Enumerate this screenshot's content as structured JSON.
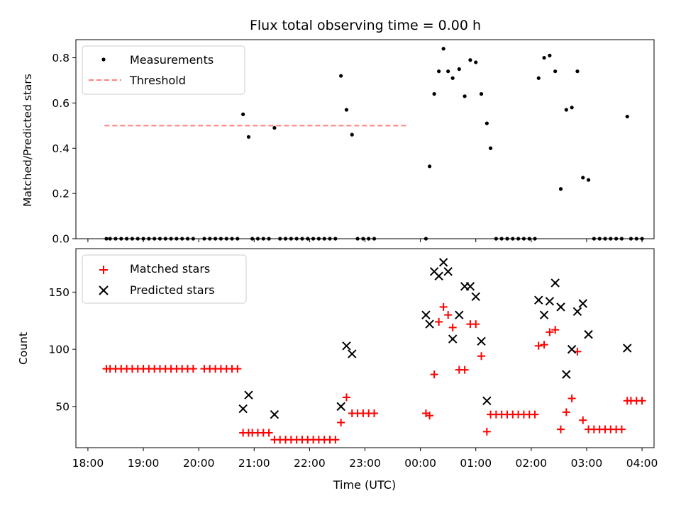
{
  "chart_data": [
    {
      "type": "scatter",
      "title": "Flux total observing time = 0.00 h",
      "xlabel": "",
      "ylabel": "Matched/Predicted stars",
      "xlim": [
        "18:00",
        "04:00"
      ],
      "ylim": [
        0,
        0.88
      ],
      "yticks": [
        "0.0",
        "0.2",
        "0.4",
        "0.6",
        "0.8"
      ],
      "legend": {
        "position": "top-left",
        "entries": [
          "Measurements",
          "Threshold"
        ]
      },
      "threshold": {
        "value": 0.5,
        "x_range": [
          "18:18",
          "23:45"
        ],
        "color": "#ff8080"
      },
      "series": [
        {
          "name": "Measurements",
          "color": "#000000",
          "points": [
            [
              "18:20",
              0
            ],
            [
              "18:24",
              0
            ],
            [
              "18:30",
              0
            ],
            [
              "18:36",
              0
            ],
            [
              "18:42",
              0
            ],
            [
              "18:48",
              0
            ],
            [
              "18:54",
              0
            ],
            [
              "19:00",
              0
            ],
            [
              "19:06",
              0
            ],
            [
              "19:12",
              0
            ],
            [
              "19:18",
              0
            ],
            [
              "19:24",
              0
            ],
            [
              "19:30",
              0
            ],
            [
              "19:36",
              0
            ],
            [
              "19:42",
              0
            ],
            [
              "19:48",
              0
            ],
            [
              "19:54",
              0
            ],
            [
              "20:06",
              0
            ],
            [
              "20:12",
              0
            ],
            [
              "20:18",
              0
            ],
            [
              "20:24",
              0
            ],
            [
              "20:30",
              0
            ],
            [
              "20:36",
              0
            ],
            [
              "20:42",
              0
            ],
            [
              "20:48",
              0.55
            ],
            [
              "20:54",
              0.45
            ],
            [
              "20:58",
              0
            ],
            [
              "21:04",
              0
            ],
            [
              "21:10",
              0
            ],
            [
              "21:16",
              0
            ],
            [
              "21:22",
              0.49
            ],
            [
              "21:28",
              0
            ],
            [
              "21:34",
              0
            ],
            [
              "21:40",
              0
            ],
            [
              "21:46",
              0
            ],
            [
              "21:52",
              0
            ],
            [
              "21:58",
              0
            ],
            [
              "22:04",
              0
            ],
            [
              "22:10",
              0
            ],
            [
              "22:16",
              0
            ],
            [
              "22:22",
              0
            ],
            [
              "22:28",
              0
            ],
            [
              "22:34",
              0.72
            ],
            [
              "22:40",
              0.57
            ],
            [
              "22:46",
              0.46
            ],
            [
              "22:52",
              0
            ],
            [
              "22:58",
              0
            ],
            [
              "23:04",
              0
            ],
            [
              "23:10",
              0
            ],
            [
              "00:06",
              0
            ],
            [
              "00:10",
              0.32
            ],
            [
              "00:15",
              0.64
            ],
            [
              "00:20",
              0.74
            ],
            [
              "00:25",
              0.84
            ],
            [
              "00:30",
              0.74
            ],
            [
              "00:35",
              0.71
            ],
            [
              "00:42",
              0.75
            ],
            [
              "00:48",
              0.63
            ],
            [
              "00:54",
              0.79
            ],
            [
              "01:00",
              0.78
            ],
            [
              "01:06",
              0.64
            ],
            [
              "01:12",
              0.51
            ],
            [
              "01:16",
              0.4
            ],
            [
              "01:22",
              0
            ],
            [
              "01:28",
              0
            ],
            [
              "01:34",
              0
            ],
            [
              "01:40",
              0
            ],
            [
              "01:46",
              0
            ],
            [
              "01:52",
              0
            ],
            [
              "01:58",
              0
            ],
            [
              "02:04",
              0
            ],
            [
              "02:08",
              0.71
            ],
            [
              "02:14",
              0.8
            ],
            [
              "02:20",
              0.81
            ],
            [
              "02:26",
              0.74
            ],
            [
              "02:32",
              0.22
            ],
            [
              "02:38",
              0.57
            ],
            [
              "02:44",
              0.58
            ],
            [
              "02:50",
              0.74
            ],
            [
              "02:56",
              0.27
            ],
            [
              "03:02",
              0.26
            ],
            [
              "03:08",
              0
            ],
            [
              "03:14",
              0
            ],
            [
              "03:20",
              0
            ],
            [
              "03:26",
              0
            ],
            [
              "03:32",
              0
            ],
            [
              "03:38",
              0
            ],
            [
              "03:44",
              0.54
            ],
            [
              "03:48",
              0
            ],
            [
              "03:54",
              0
            ],
            [
              "04:00",
              0
            ]
          ]
        }
      ]
    },
    {
      "type": "scatter",
      "title": "",
      "xlabel": "Time (UTC)",
      "ylabel": "Count",
      "xlim": [
        "18:00",
        "04:00"
      ],
      "ylim": [
        14,
        188
      ],
      "xticks": [
        "18:00",
        "19:00",
        "20:00",
        "21:00",
        "22:00",
        "23:00",
        "00:00",
        "01:00",
        "02:00",
        "03:00",
        "04:00"
      ],
      "yticks": [
        "50",
        "100",
        "150"
      ],
      "legend": {
        "position": "top-left",
        "entries": [
          "Matched stars",
          "Predicted stars"
        ]
      },
      "series": [
        {
          "name": "Matched stars",
          "marker": "plus",
          "color": "#ff0000",
          "points": [
            [
              "18:20",
              83
            ],
            [
              "18:24",
              83
            ],
            [
              "18:30",
              83
            ],
            [
              "18:36",
              83
            ],
            [
              "18:42",
              83
            ],
            [
              "18:48",
              83
            ],
            [
              "18:54",
              83
            ],
            [
              "19:00",
              83
            ],
            [
              "19:06",
              83
            ],
            [
              "19:12",
              83
            ],
            [
              "19:18",
              83
            ],
            [
              "19:24",
              83
            ],
            [
              "19:30",
              83
            ],
            [
              "19:36",
              83
            ],
            [
              "19:42",
              83
            ],
            [
              "19:48",
              83
            ],
            [
              "19:54",
              83
            ],
            [
              "20:06",
              83
            ],
            [
              "20:12",
              83
            ],
            [
              "20:18",
              83
            ],
            [
              "20:24",
              83
            ],
            [
              "20:30",
              83
            ],
            [
              "20:36",
              83
            ],
            [
              "20:42",
              83
            ],
            [
              "20:48",
              27
            ],
            [
              "20:54",
              27
            ],
            [
              "20:58",
              27
            ],
            [
              "21:04",
              27
            ],
            [
              "21:10",
              27
            ],
            [
              "21:16",
              27
            ],
            [
              "21:22",
              21
            ],
            [
              "21:28",
              21
            ],
            [
              "21:34",
              21
            ],
            [
              "21:40",
              21
            ],
            [
              "21:46",
              21
            ],
            [
              "21:52",
              21
            ],
            [
              "21:58",
              21
            ],
            [
              "22:04",
              21
            ],
            [
              "22:10",
              21
            ],
            [
              "22:16",
              21
            ],
            [
              "22:22",
              21
            ],
            [
              "22:28",
              21
            ],
            [
              "22:34",
              36
            ],
            [
              "22:40",
              58
            ],
            [
              "22:46",
              44
            ],
            [
              "22:52",
              44
            ],
            [
              "22:58",
              44
            ],
            [
              "23:04",
              44
            ],
            [
              "23:10",
              44
            ],
            [
              "00:06",
              44
            ],
            [
              "00:10",
              42
            ],
            [
              "00:15",
              78
            ],
            [
              "00:20",
              124
            ],
            [
              "00:25",
              137
            ],
            [
              "00:30",
              130
            ],
            [
              "00:35",
              119
            ],
            [
              "00:42",
              82
            ],
            [
              "00:48",
              82
            ],
            [
              "00:54",
              122
            ],
            [
              "01:00",
              122
            ],
            [
              "01:06",
              94
            ],
            [
              "01:12",
              28
            ],
            [
              "01:16",
              43
            ],
            [
              "01:22",
              43
            ],
            [
              "01:28",
              43
            ],
            [
              "01:34",
              43
            ],
            [
              "01:40",
              43
            ],
            [
              "01:46",
              43
            ],
            [
              "01:52",
              43
            ],
            [
              "01:58",
              43
            ],
            [
              "02:04",
              43
            ],
            [
              "02:08",
              103
            ],
            [
              "02:14",
              104
            ],
            [
              "02:20",
              115
            ],
            [
              "02:26",
              117
            ],
            [
              "02:32",
              30
            ],
            [
              "02:38",
              45
            ],
            [
              "02:44",
              57
            ],
            [
              "02:50",
              98
            ],
            [
              "02:56",
              38
            ],
            [
              "03:02",
              30
            ],
            [
              "03:08",
              30
            ],
            [
              "03:14",
              30
            ],
            [
              "03:20",
              30
            ],
            [
              "03:26",
              30
            ],
            [
              "03:32",
              30
            ],
            [
              "03:38",
              30
            ],
            [
              "03:44",
              55
            ],
            [
              "03:48",
              55
            ],
            [
              "03:54",
              55
            ],
            [
              "04:00",
              55
            ]
          ]
        },
        {
          "name": "Predicted stars",
          "marker": "x",
          "color": "#000000",
          "points": [
            [
              "20:48",
              48
            ],
            [
              "20:54",
              60
            ],
            [
              "21:22",
              43
            ],
            [
              "22:34",
              50
            ],
            [
              "22:40",
              103
            ],
            [
              "22:46",
              96
            ],
            [
              "00:06",
              130
            ],
            [
              "00:10",
              122
            ],
            [
              "00:15",
              168
            ],
            [
              "00:20",
              164
            ],
            [
              "00:25",
              176
            ],
            [
              "00:30",
              168
            ],
            [
              "00:35",
              109
            ],
            [
              "00:42",
              130
            ],
            [
              "00:48",
              155
            ],
            [
              "00:54",
              155
            ],
            [
              "01:00",
              146
            ],
            [
              "01:06",
              107
            ],
            [
              "01:12",
              55
            ],
            [
              "02:08",
              143
            ],
            [
              "02:14",
              130
            ],
            [
              "02:20",
              142
            ],
            [
              "02:26",
              158
            ],
            [
              "02:32",
              137
            ],
            [
              "02:38",
              78
            ],
            [
              "02:44",
              100
            ],
            [
              "02:50",
              133
            ],
            [
              "02:56",
              140
            ],
            [
              "03:02",
              113
            ],
            [
              "03:44",
              101
            ]
          ]
        }
      ]
    }
  ]
}
